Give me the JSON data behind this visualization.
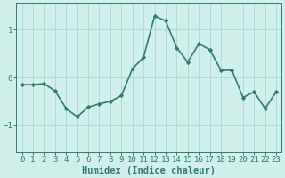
{
  "x": [
    0,
    1,
    2,
    3,
    4,
    5,
    6,
    7,
    8,
    9,
    10,
    11,
    12,
    13,
    14,
    15,
    16,
    17,
    18,
    19,
    20,
    21,
    22,
    23
  ],
  "y": [
    -0.15,
    -0.15,
    -0.13,
    -0.28,
    -0.65,
    -0.82,
    -0.62,
    -0.55,
    -0.5,
    -0.38,
    0.18,
    0.42,
    1.28,
    1.18,
    0.62,
    0.32,
    0.7,
    0.58,
    0.15,
    0.15,
    -0.42,
    -0.3,
    -0.65,
    -0.3
  ],
  "line_color": "#2e7d6e",
  "marker": "D",
  "marker_size": 2.2,
  "bg_color": "#cff0eb",
  "grid_color": "#aad9d2",
  "tick_color": "#2e7d6e",
  "label_color": "#2e7d6e",
  "xlabel": "Humidex (Indice chaleur)",
  "ylim": [
    -1.55,
    1.55
  ],
  "yticks": [
    -1,
    0,
    1
  ],
  "xticks": [
    0,
    1,
    2,
    3,
    4,
    5,
    6,
    7,
    8,
    9,
    10,
    11,
    12,
    13,
    14,
    15,
    16,
    17,
    18,
    19,
    20,
    21,
    22,
    23
  ],
  "xlabel_fontsize": 7.5,
  "tick_fontsize": 6.5,
  "line_width": 1.2
}
